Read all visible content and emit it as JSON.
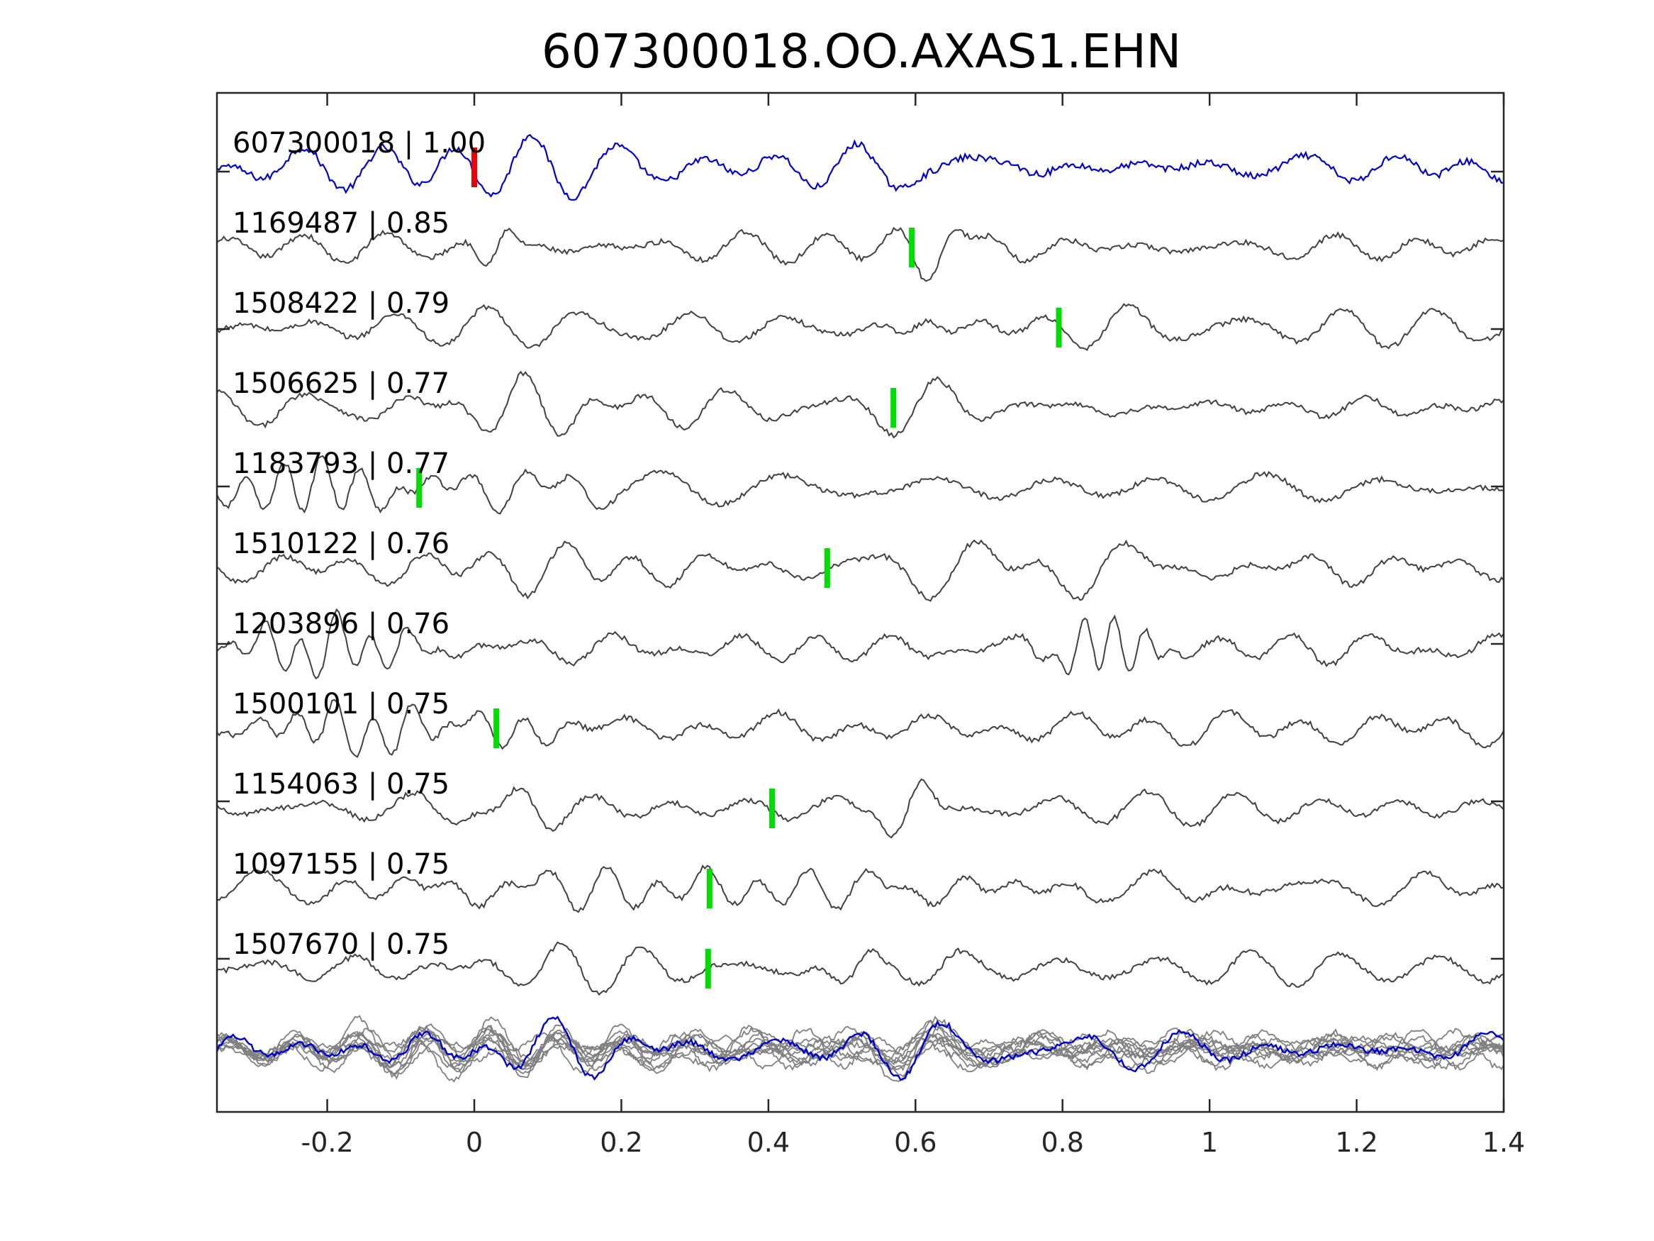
{
  "chart_data": {
    "type": "line",
    "title": "607300018.OO.AXAS1.EHN",
    "xlabel": "",
    "ylabel": "",
    "xlim": [
      -0.35,
      1.4
    ],
    "xticks": [
      -0.2,
      0,
      0.2,
      0.4,
      0.6,
      0.8,
      1,
      1.2,
      1.4
    ],
    "xtick_labels": [
      "-0.2",
      "0",
      "0.2",
      "0.4",
      "0.6",
      "0.8",
      "1",
      "1.2",
      "1.4"
    ],
    "grid": false,
    "colors": {
      "master_trace": "#0000cc",
      "template_trace": "#404040",
      "stack_trace": "#808080",
      "reference_pick": "#ee0000",
      "template_pick": "#00dd00"
    },
    "series": [
      {
        "label": "607300018 | 1.00",
        "pick": 0.0,
        "pick_color": "reference",
        "role": "master"
      },
      {
        "label": "1169487 | 0.85",
        "pick": 0.595
      },
      {
        "label": "1508422 | 0.79",
        "pick": 0.795
      },
      {
        "label": "1506625 | 0.77",
        "pick": 0.57
      },
      {
        "label": "1183793 | 0.77",
        "pick": -0.075
      },
      {
        "label": "1510122 | 0.76",
        "pick": 0.48
      },
      {
        "label": "1203896 | 0.76",
        "pick": null
      },
      {
        "label": "1500101 | 0.75",
        "pick": 0.03
      },
      {
        "label": "1154063 | 0.75",
        "pick": 0.405
      },
      {
        "label": "1097155 | 0.75",
        "pick": 0.32
      },
      {
        "label": "1507670 | 0.75",
        "pick": 0.318
      }
    ],
    "stack": {
      "label": "",
      "role": "overlay"
    }
  }
}
